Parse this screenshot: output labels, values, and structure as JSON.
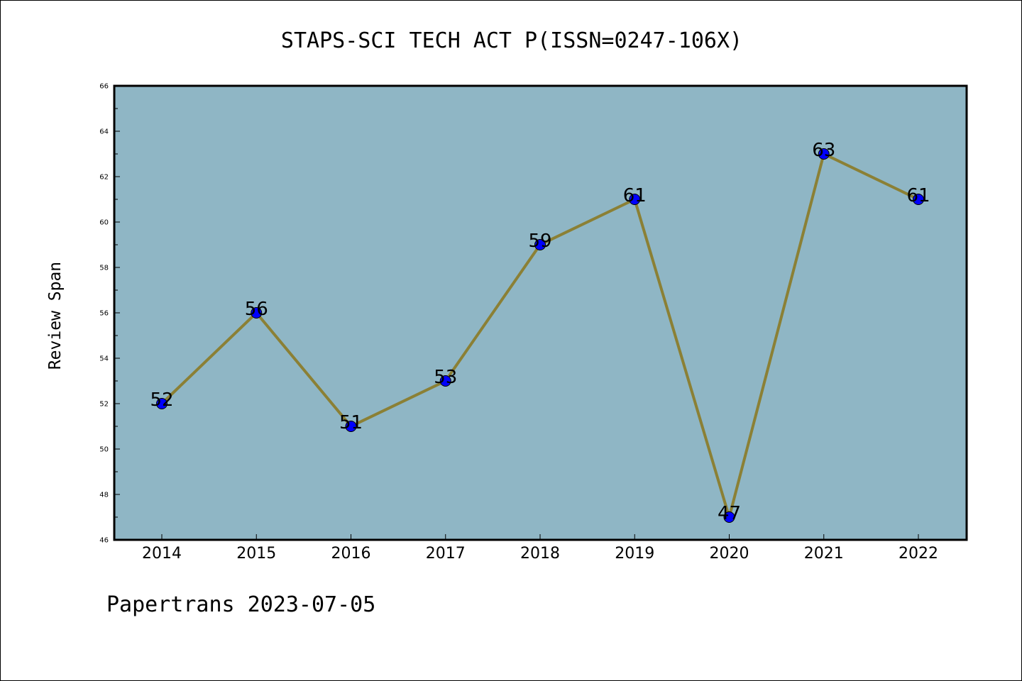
{
  "chart_data": {
    "type": "line",
    "title": "STAPS-SCI TECH ACT P(ISSN=0247-106X)",
    "xlabel": "",
    "ylabel": "Review Span",
    "categories": [
      "2014",
      "2015",
      "2016",
      "2017",
      "2018",
      "2019",
      "2020",
      "2021",
      "2022"
    ],
    "series": [
      {
        "values": [
          52,
          56,
          51,
          53,
          59,
          61,
          47,
          63,
          61
        ],
        "line_color": "#8b8035",
        "marker_color": "#0000ff"
      }
    ],
    "ylim": [
      46,
      66
    ],
    "y_ticks": [
      46,
      48,
      50,
      52,
      54,
      56,
      58,
      60,
      62,
      64,
      66
    ],
    "grid": false,
    "legend": "none",
    "data_labels": true,
    "plot_background": "#8fb6c5"
  },
  "footer": {
    "note": "Papertrans 2023-07-05"
  }
}
